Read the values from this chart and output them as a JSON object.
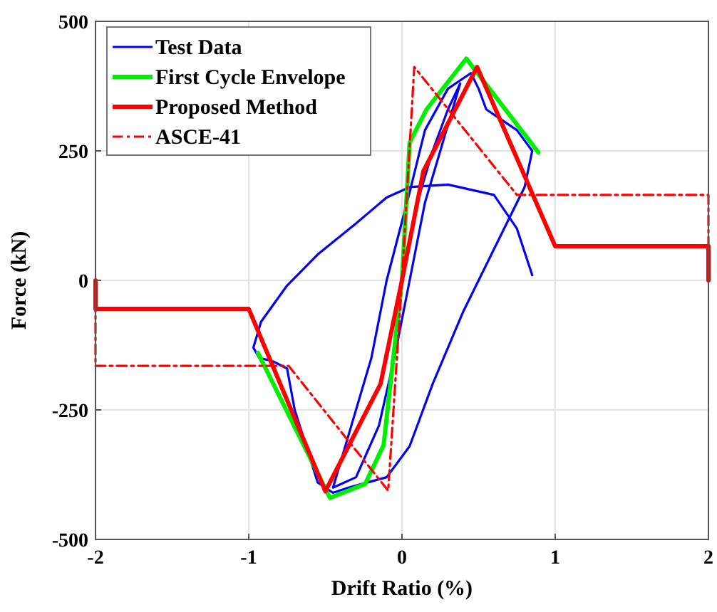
{
  "chart_data": {
    "type": "line",
    "xlabel": "Drift Ratio (%)",
    "ylabel": "Force (kN)",
    "xlim": [
      -2,
      2
    ],
    "ylim": [
      -500,
      500
    ],
    "xticks": [
      -2,
      -1,
      0,
      1,
      2
    ],
    "yticks": [
      -500,
      -250,
      0,
      250,
      500
    ],
    "grid": true,
    "legend": "top left",
    "series": [
      {
        "name": "Test Data",
        "color": "#0000ff",
        "line_style": "solid",
        "x": [
          0,
          0.1,
          0.2,
          0.3,
          0.38,
          0.3,
          0.15,
          0.05,
          -0.05,
          -0.15,
          -0.3,
          -0.45,
          -0.35,
          -0.2,
          -0.1,
          0.05,
          0.15,
          0.3,
          0.45,
          0.5,
          0.55,
          0.65,
          0.75,
          0.85,
          0.8,
          0.6,
          0.4,
          0.2,
          0.05,
          -0.1,
          -0.35,
          -0.45,
          -0.55,
          -0.7,
          -0.75,
          -0.85,
          -0.93,
          -0.97,
          -0.92,
          -0.75,
          -0.55,
          -0.3,
          -0.1,
          0.05,
          0.3,
          0.6,
          0.75,
          0.85
        ],
        "values": [
          0,
          150,
          250,
          330,
          380,
          300,
          150,
          0,
          -150,
          -280,
          -380,
          -400,
          -300,
          -150,
          0,
          170,
          290,
          370,
          400,
          370,
          330,
          310,
          290,
          250,
          180,
          60,
          -60,
          -200,
          -320,
          -380,
          -400,
          -410,
          -390,
          -250,
          -170,
          -155,
          -150,
          -130,
          -80,
          -10,
          50,
          110,
          160,
          180,
          185,
          165,
          100,
          10
        ]
      },
      {
        "name": "First Cycle Envelope",
        "color": "#00ee00",
        "line_style": "solid",
        "x": [
          -0.94,
          -0.47,
          -0.24,
          -0.12,
          0,
          0.05,
          0.16,
          0.42,
          0.89
        ],
        "values": [
          -140,
          -420,
          -393,
          -318,
          0,
          266,
          330,
          428,
          247
        ]
      },
      {
        "name": "Proposed Method",
        "color": "#ff0000",
        "line_style": "solid",
        "x": [
          -2,
          -2,
          -1,
          -0.5,
          -0.14,
          0,
          0.14,
          0.49,
          1,
          2,
          2
        ],
        "values": [
          0,
          -55,
          -55,
          -407,
          -200,
          0,
          211,
          412,
          66,
          66,
          0
        ]
      },
      {
        "name": "ASCE-41",
        "color": "#ff0000",
        "line_style": "dashdot",
        "x": [
          -2,
          -2,
          -0.74,
          -0.09,
          0,
          0.08,
          0.75,
          2,
          2
        ],
        "values": [
          0,
          -165,
          -165,
          -406,
          0,
          412,
          165,
          165,
          0
        ]
      }
    ]
  }
}
